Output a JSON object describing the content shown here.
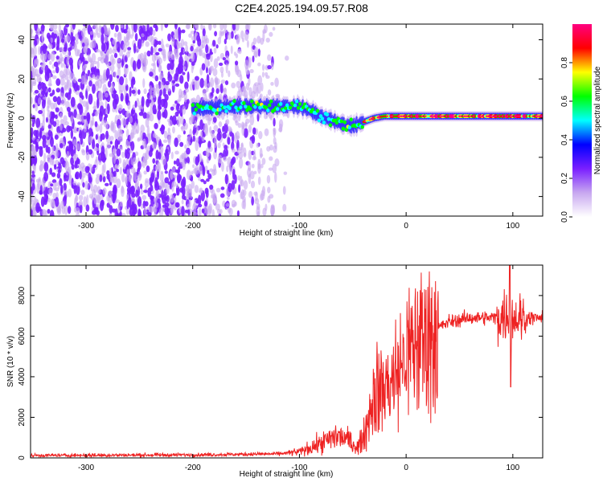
{
  "title": "C2E4.2025.194.09.57.R08",
  "chart_data": [
    {
      "type": "heatmap",
      "xlabel": "Height of straight line (km)",
      "ylabel": "Frequency (Hz)",
      "xlim": [
        -352,
        128
      ],
      "ylim": [
        -50,
        48
      ],
      "xticks": [
        -300,
        -200,
        -100,
        0,
        100
      ],
      "yticks": [
        -40,
        -20,
        0,
        20,
        40
      ],
      "colorbar": {
        "label": "Normalized spectral amplitude",
        "range": [
          0.0,
          1.0
        ],
        "ticks": [
          0.0,
          0.2,
          0.4,
          0.6,
          0.8
        ],
        "colors": [
          "#ffffff",
          "#c8a8f0",
          "#7a1fff",
          "#0000ff",
          "#00ffff",
          "#00ff00",
          "#ffff00",
          "#ff0000",
          "#ff0080"
        ]
      },
      "ridge": {
        "x": [
          -195,
          -160,
          -140,
          -120,
          -100,
          -90,
          -80,
          -70,
          -60,
          -50,
          -45,
          -40,
          -30,
          -20,
          0,
          20,
          50,
          80,
          100,
          128
        ],
        "y": [
          5,
          6,
          6,
          6,
          6,
          4,
          1,
          -1,
          -3,
          -4,
          -3,
          -2,
          0,
          1,
          1,
          1,
          1,
          1,
          1,
          1
        ]
      }
    },
    {
      "type": "line",
      "xlabel": "Height of straight line (km)",
      "ylabel": "SNR (10 * v/v)",
      "xlim": [
        -352,
        128
      ],
      "ylim": [
        0,
        9500
      ],
      "xticks": [
        -300,
        -200,
        -100,
        0,
        100
      ],
      "yticks": [
        0,
        2000,
        4000,
        6000,
        8000
      ],
      "color": "#ee2222",
      "series_profile": {
        "x": [
          -352,
          -200,
          -120,
          -100,
          -80,
          -65,
          -55,
          -45,
          -38,
          -30,
          -20,
          -10,
          0,
          10,
          20,
          30,
          40,
          60,
          80,
          95,
          105,
          128
        ],
        "y": [
          120,
          150,
          200,
          300,
          700,
          1100,
          900,
          500,
          1400,
          3200,
          3500,
          4000,
          5000,
          5600,
          6000,
          6400,
          6700,
          6900,
          6900,
          7000,
          6900,
          6900
        ]
      },
      "dip": {
        "x": 98,
        "y": 3500
      },
      "spike": {
        "x": 98,
        "y": 9500
      }
    }
  ]
}
